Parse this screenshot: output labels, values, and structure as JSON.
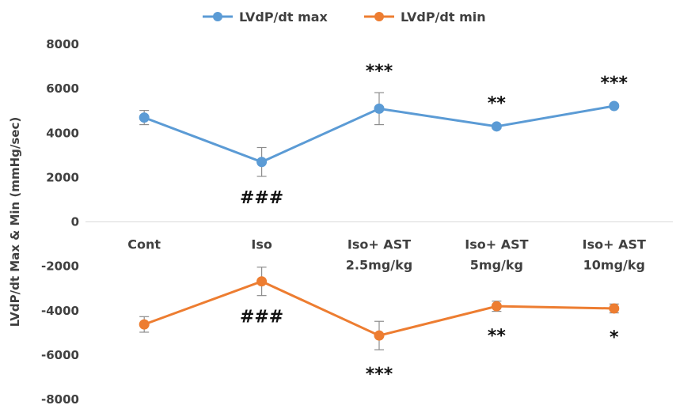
{
  "chart_data": {
    "type": "line",
    "title": "",
    "xlabel": "",
    "ylabel": "LVdP/dt Max & Min (mmHg/sec)",
    "ylim": [
      -8000,
      8000
    ],
    "yticks": [
      8000,
      6000,
      4000,
      2000,
      0,
      -2000,
      -4000,
      -6000,
      -8000
    ],
    "ytick_labels": [
      "8000",
      "6000",
      "4000",
      "2000",
      "0",
      "-2000",
      "-4000",
      "-6000",
      "-8000"
    ],
    "categories": [
      [
        "Cont"
      ],
      [
        "Iso"
      ],
      [
        "Iso+ AST",
        "2.5mg/kg"
      ],
      [
        "Iso+ AST",
        "5mg/kg"
      ],
      [
        "Iso+ AST",
        "10mg/kg"
      ]
    ],
    "grid": false,
    "legend_position": "top-center",
    "series": [
      {
        "name": "LVdP/dt max",
        "color": "#5b9bd5",
        "values": [
          4700,
          2700,
          5100,
          4300,
          5220
        ],
        "errors": [
          320,
          650,
          720,
          80,
          80
        ],
        "annotations": [
          "",
          "###",
          "***",
          "**",
          "***"
        ],
        "annotation_side": [
          "",
          "below",
          "above",
          "above",
          "above"
        ]
      },
      {
        "name": "LVdP/dt min",
        "color": "#ed7d31",
        "values": [
          -4620,
          -2680,
          -5120,
          -3800,
          -3900
        ],
        "errors": [
          350,
          640,
          640,
          230,
          200
        ],
        "annotations": [
          "",
          "###",
          "***",
          "**",
          "*"
        ],
        "annotation_side": [
          "",
          "below",
          "below",
          "below",
          "below"
        ]
      }
    ]
  }
}
